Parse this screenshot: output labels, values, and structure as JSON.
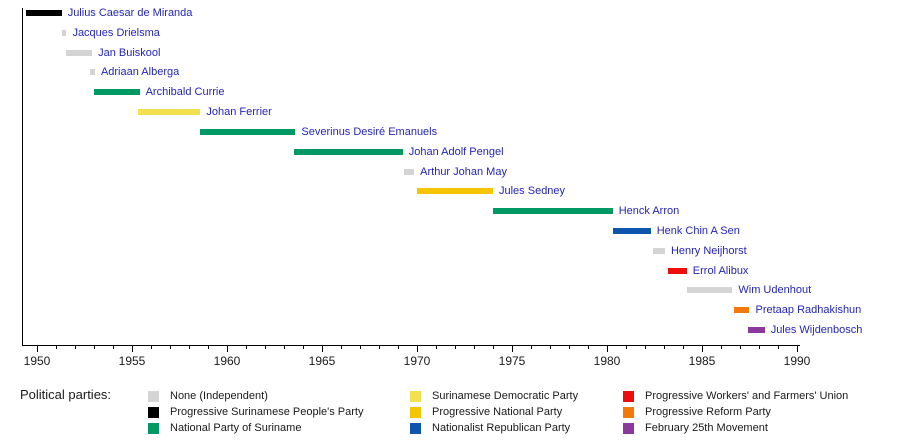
{
  "chart_data": {
    "type": "bar",
    "variant": "horizontal-timeline",
    "title": "",
    "xlabel": "",
    "ylabel": "",
    "grid": "off",
    "xlim": [
      1950,
      1990
    ],
    "x_major_ticks": [
      1950,
      1955,
      1960,
      1965,
      1970,
      1975,
      1980,
      1985,
      1990
    ],
    "x_minor_tick_interval_years": 1,
    "label_color": "#2424bb",
    "parties": {
      "none": {
        "label": "None (Independent)",
        "color": "#d4d4d4"
      },
      "pspp": {
        "label": "Progressive Surinamese People's Party",
        "color": "#000000"
      },
      "nps": {
        "label": "National Party of Suriname",
        "color": "#009963"
      },
      "sdp": {
        "label": "Surinamese Democratic Party",
        "color": "#f2e14e"
      },
      "pnp": {
        "label": "Progressive National Party",
        "color": "#f4c500"
      },
      "nrp": {
        "label": "Nationalist Republican Party",
        "color": "#0e56ad"
      },
      "pwfu": {
        "label": "Progressive Workers' and Farmers' Union",
        "color": "#ee0d0d"
      },
      "prp": {
        "label": "Progressive Reform Party",
        "color": "#f2780c"
      },
      "f25m": {
        "label": "February 25th Movement",
        "color": "#8b3a9b"
      }
    },
    "series": [
      {
        "name": "Julius Caesar de Miranda",
        "party": "pspp",
        "start": 1949.4,
        "end": 1951.3
      },
      {
        "name": "Jacques Drielsma",
        "party": "none",
        "start": 1951.3,
        "end": 1951.55
      },
      {
        "name": "Jan Buiskool",
        "party": "none",
        "start": 1951.55,
        "end": 1952.9
      },
      {
        "name": "Adriaan Alberga",
        "party": "none",
        "start": 1952.8,
        "end": 1953.05
      },
      {
        "name": "Archibald Currie",
        "party": "nps",
        "start": 1953.0,
        "end": 1955.4
      },
      {
        "name": "Johan Ferrier",
        "party": "sdp",
        "start": 1955.3,
        "end": 1958.6
      },
      {
        "name": "Severinus Desiré Emanuels",
        "party": "nps",
        "start": 1958.6,
        "end": 1963.6
      },
      {
        "name": "Johan Adolf Pengel",
        "party": "nps",
        "start": 1963.5,
        "end": 1969.25
      },
      {
        "name": "Arthur Johan May",
        "party": "none",
        "start": 1969.3,
        "end": 1969.85
      },
      {
        "name": "Jules Sedney",
        "party": "pnp",
        "start": 1970.0,
        "end": 1974.0
      },
      {
        "name": "Henck Arron",
        "party": "nps",
        "start": 1974.0,
        "end": 1980.3
      },
      {
        "name": "Henk Chin A Sen",
        "party": "nrp",
        "start": 1980.3,
        "end": 1982.3
      },
      {
        "name": "Henry Neijhorst",
        "party": "none",
        "start": 1982.4,
        "end": 1983.05
      },
      {
        "name": "Errol Alibux",
        "party": "pwfu",
        "start": 1983.2,
        "end": 1984.2
      },
      {
        "name": "Wim Udenhout",
        "party": "none",
        "start": 1984.2,
        "end": 1986.6
      },
      {
        "name": "Pretaap Radhakishun",
        "party": "prp",
        "start": 1986.7,
        "end": 1987.5
      },
      {
        "name": "Jules Wijdenbosch",
        "party": "f25m",
        "start": 1987.4,
        "end": 1988.3
      }
    ]
  },
  "legend": {
    "title": "Political parties:",
    "columns": [
      [
        "none",
        "pspp",
        "nps"
      ],
      [
        "sdp",
        "pnp",
        "nrp"
      ],
      [
        "pwfu",
        "prp",
        "f25m"
      ]
    ]
  }
}
